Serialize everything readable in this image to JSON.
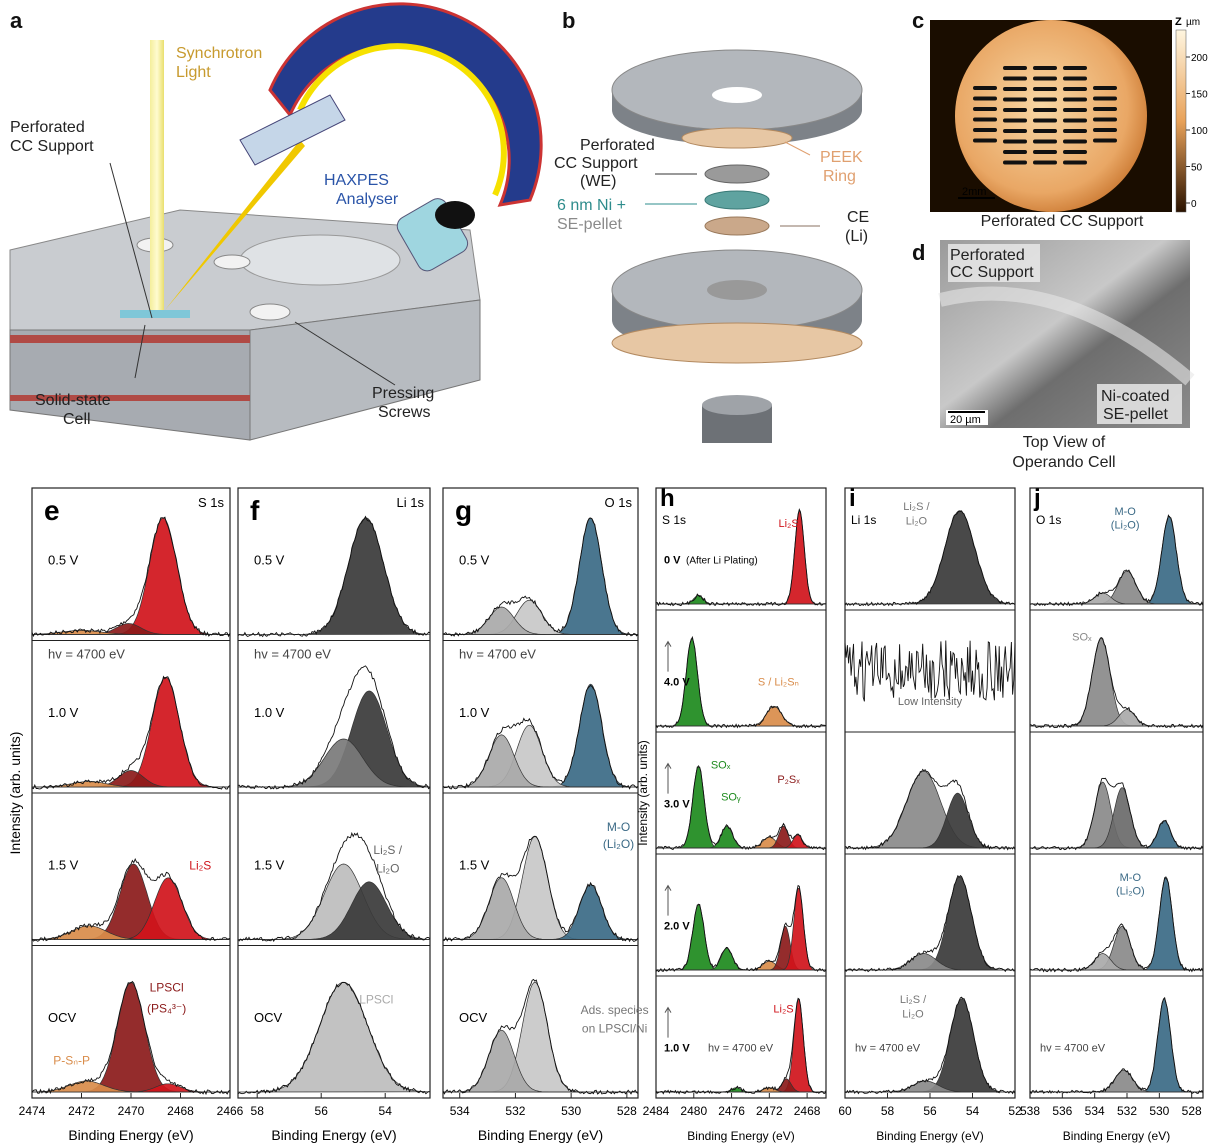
{
  "panels_top": {
    "a": {
      "label": "a",
      "texts": [
        [
          "Synchrotron",
          "Light"
        ],
        [
          "Perforated",
          "CC Support"
        ],
        [
          "HAXPES",
          "Analyser"
        ],
        [
          "Solid-state",
          "Cell"
        ],
        [
          "Pressing",
          "Screws"
        ]
      ]
    },
    "b": {
      "label": "b",
      "texts": [
        [
          "Perforated",
          "CC Support",
          "(WE)"
        ],
        [
          "PEEK",
          "Ring"
        ],
        [
          "6 nm Ni +",
          "SE-pellet"
        ],
        [
          "CE",
          "(Li)"
        ]
      ]
    },
    "c": {
      "label": "c",
      "axis": "Z",
      "unit": "µm",
      "colorbar_ticks": [
        200,
        150,
        100,
        50,
        0
      ],
      "scale_bar": "2mm",
      "caption": "Perforated CC Support"
    },
    "d": {
      "label": "d",
      "texts": [
        [
          "Perforated",
          "CC Support"
        ],
        [
          "Ni-coated",
          "SE-pellet"
        ]
      ],
      "scale_bar": "20 µm",
      "caption": [
        "Top View of",
        "Operando Cell"
      ]
    }
  },
  "ylabel": "Intensity (arb. units)",
  "spectra": [
    {
      "label": "e",
      "core": "S 1s",
      "xlabel": "Binding Energy (eV)",
      "xlim": [
        2474,
        2466
      ],
      "xticks": [
        2474,
        2472,
        2470,
        2468,
        2466
      ],
      "rows": [
        {
          "label": "0.5 V",
          "notes": [],
          "peaks": [
            {
              "center": 2468.7,
              "amplitude": 0.85,
              "width": 0.55,
              "color": "#d0141b"
            },
            {
              "center": 2470.1,
              "amplitude": 0.08,
              "width": 0.5,
              "color": "#8b1a1a"
            },
            {
              "center": 2472,
              "amplitude": 0.03,
              "width": 0.8,
              "color": "#d98c4a"
            }
          ]
        },
        {
          "label": "1.0 V",
          "hv": "hv = 4700 eV",
          "notes": [],
          "peaks": [
            {
              "center": 2468.6,
              "amplitude": 0.8,
              "width": 0.55,
              "color": "#d0141b"
            },
            {
              "center": 2470,
              "amplitude": 0.12,
              "width": 0.5,
              "color": "#8b1a1a"
            },
            {
              "center": 2471.7,
              "amplitude": 0.04,
              "width": 0.7,
              "color": "#d98c4a"
            }
          ]
        },
        {
          "label": "1.5 V",
          "notes": [
            {
              "text": "Li₂S",
              "color": "#d0141b"
            }
          ],
          "peaks": [
            {
              "center": 2469.9,
              "amplitude": 0.55,
              "width": 0.55,
              "color": "#8b1a1a"
            },
            {
              "center": 2468.5,
              "amplitude": 0.45,
              "width": 0.55,
              "color": "#d0141b"
            },
            {
              "center": 2471.7,
              "amplitude": 0.1,
              "width": 0.7,
              "color": "#d98c4a"
            }
          ]
        },
        {
          "label": "OCV",
          "notes": [
            {
              "text": "LPSCl",
              "color": "#8b1a1a"
            },
            {
              "text": "(PS₄³⁻)",
              "color": "#8b1a1a"
            },
            {
              "text": "P-Sₙ-P",
              "color": "#d98c4a"
            }
          ],
          "peaks": [
            {
              "center": 2470,
              "amplitude": 0.8,
              "width": 0.55,
              "color": "#8b1a1a"
            },
            {
              "center": 2468.5,
              "amplitude": 0.06,
              "width": 0.5,
              "color": "#d0141b"
            },
            {
              "center": 2471.8,
              "amplitude": 0.08,
              "width": 0.7,
              "color": "#d98c4a"
            }
          ]
        }
      ]
    },
    {
      "label": "f",
      "core": "Li 1s",
      "xlabel": "Binding Energy (eV)",
      "xlim": [
        58.6,
        52.6
      ],
      "xticks": [
        58,
        56,
        54
      ],
      "rows": [
        {
          "label": "0.5 V",
          "notes": [],
          "peaks": [
            {
              "center": 54.6,
              "amplitude": 0.85,
              "width": 0.55,
              "color": "#3a3a3a"
            }
          ]
        },
        {
          "label": "1.0 V",
          "hv": "hv = 4700 eV",
          "notes": [],
          "peaks": [
            {
              "center": 54.5,
              "amplitude": 0.7,
              "width": 0.55,
              "color": "#3a3a3a"
            },
            {
              "center": 55.3,
              "amplitude": 0.35,
              "width": 0.6,
              "color": "#7a7a7a"
            }
          ]
        },
        {
          "label": "1.5 V",
          "notes": [
            {
              "text": "Li₂S /",
              "color": "#666666"
            },
            {
              "text": "Li₂O",
              "color": "#666666"
            }
          ],
          "peaks": [
            {
              "center": 55.3,
              "amplitude": 0.55,
              "width": 0.6,
              "color": "#bdbdbd"
            },
            {
              "center": 54.5,
              "amplitude": 0.42,
              "width": 0.55,
              "color": "#3a3a3a"
            }
          ]
        },
        {
          "label": "OCV",
          "notes": [
            {
              "text": "LPSCl",
              "color": "#aaaaaa"
            }
          ],
          "peaks": [
            {
              "center": 55.3,
              "amplitude": 0.8,
              "width": 0.75,
              "color": "#bdbdbd"
            }
          ]
        }
      ]
    },
    {
      "label": "g",
      "core": "O 1s",
      "xlabel": "Binding Energy (eV)",
      "xlim": [
        534.6,
        527.6
      ],
      "xticks": [
        534,
        532,
        530,
        528
      ],
      "rows": [
        {
          "label": "0.5 V",
          "notes": [],
          "peaks": [
            {
              "center": 529.3,
              "amplitude": 0.85,
              "width": 0.4,
              "color": "#3b6a86"
            },
            {
              "center": 531.5,
              "amplitude": 0.25,
              "width": 0.45,
              "color": "#c8c8c8"
            },
            {
              "center": 532.5,
              "amplitude": 0.2,
              "width": 0.45,
              "color": "#a9a9a9"
            }
          ]
        },
        {
          "label": "1.0 V",
          "hv": "hv = 4700 eV",
          "notes": [],
          "peaks": [
            {
              "center": 529.3,
              "amplitude": 0.75,
              "width": 0.4,
              "color": "#3b6a86"
            },
            {
              "center": 531.5,
              "amplitude": 0.45,
              "width": 0.45,
              "color": "#c8c8c8"
            },
            {
              "center": 532.5,
              "amplitude": 0.38,
              "width": 0.45,
              "color": "#a9a9a9"
            }
          ]
        },
        {
          "label": "1.5 V",
          "notes": [
            {
              "text": "M-O",
              "color": "#3b6a86"
            },
            {
              "text": "(Li₂O)",
              "color": "#3b6a86"
            }
          ],
          "peaks": [
            {
              "center": 531.3,
              "amplitude": 0.75,
              "width": 0.45,
              "color": "#c8c8c8"
            },
            {
              "center": 532.5,
              "amplitude": 0.45,
              "width": 0.45,
              "color": "#a9a9a9"
            },
            {
              "center": 529.3,
              "amplitude": 0.4,
              "width": 0.4,
              "color": "#3b6a86"
            }
          ]
        },
        {
          "label": "OCV",
          "notes": [
            {
              "text": "Ads. species",
              "color": "#777777"
            },
            {
              "text": "on LPSCl/Ni",
              "color": "#777777"
            }
          ],
          "peaks": [
            {
              "center": 531.3,
              "amplitude": 0.8,
              "width": 0.45,
              "color": "#c8c8c8"
            },
            {
              "center": 532.5,
              "amplitude": 0.45,
              "width": 0.45,
              "color": "#a9a9a9"
            }
          ]
        }
      ]
    },
    {
      "label": "h",
      "core": "S 1s",
      "xlabel": "Binding Energy (eV)",
      "xlim": [
        2484,
        2466
      ],
      "xticks": [
        2484,
        2480,
        2476,
        2472,
        2468
      ],
      "rows": [
        {
          "label": "0 V",
          "sub": "(After Li Plating)",
          "notes": [
            {
              "text": "Li₂S",
              "color": "#d0141b"
            }
          ],
          "peaks": [
            {
              "center": 2468.8,
              "amplitude": 0.85,
              "width": 0.5,
              "color": "#d0141b"
            },
            {
              "center": 2479.5,
              "amplitude": 0.08,
              "width": 0.5,
              "color": "#1d8a1d"
            }
          ]
        },
        {
          "label": "4.0 V",
          "notes": [
            {
              "text": "S / Li₂Sₙ",
              "color": "#d98c4a"
            }
          ],
          "peaks": [
            {
              "center": 2480.2,
              "amplitude": 0.8,
              "width": 0.6,
              "color": "#1d8a1d"
            },
            {
              "center": 2471.5,
              "amplitude": 0.18,
              "width": 0.8,
              "color": "#d98c4a"
            }
          ]
        },
        {
          "label": "3.0 V",
          "notes": [
            {
              "text": "SOₓ",
              "color": "#1d8a1d"
            },
            {
              "text": "SOᵧ",
              "color": "#1d8a1d"
            },
            {
              "text": "P₂Sₓ",
              "color": "#8b1a1a"
            }
          ],
          "peaks": [
            {
              "center": 2479.5,
              "amplitude": 0.75,
              "width": 0.6,
              "color": "#1d8a1d"
            },
            {
              "center": 2476.5,
              "amplitude": 0.2,
              "width": 0.6,
              "color": "#1d8a1d"
            },
            {
              "center": 2472,
              "amplitude": 0.1,
              "width": 0.7,
              "color": "#d98c4a"
            },
            {
              "center": 2470.5,
              "amplitude": 0.2,
              "width": 0.5,
              "color": "#8b1a1a"
            },
            {
              "center": 2469,
              "amplitude": 0.12,
              "width": 0.5,
              "color": "#d0141b"
            }
          ]
        },
        {
          "label": "2.0 V",
          "notes": [],
          "peaks": [
            {
              "center": 2479.5,
              "amplitude": 0.6,
              "width": 0.6,
              "color": "#1d8a1d"
            },
            {
              "center": 2476.5,
              "amplitude": 0.2,
              "width": 0.6,
              "color": "#1d8a1d"
            },
            {
              "center": 2472,
              "amplitude": 0.08,
              "width": 0.7,
              "color": "#d98c4a"
            },
            {
              "center": 2470.3,
              "amplitude": 0.4,
              "width": 0.5,
              "color": "#8b1a1a"
            },
            {
              "center": 2468.9,
              "amplitude": 0.75,
              "width": 0.5,
              "color": "#d0141b"
            }
          ]
        },
        {
          "label": "1.0 V",
          "hv": "hv = 4700 eV",
          "notes": [
            {
              "text": "Li₂S",
              "color": "#d0141b"
            }
          ],
          "peaks": [
            {
              "center": 2468.9,
              "amplitude": 0.85,
              "width": 0.5,
              "color": "#d0141b"
            },
            {
              "center": 2470.2,
              "amplitude": 0.12,
              "width": 0.5,
              "color": "#8b1a1a"
            },
            {
              "center": 2475.5,
              "amplitude": 0.04,
              "width": 0.5,
              "color": "#1d8a1d"
            },
            {
              "center": 2472,
              "amplitude": 0.04,
              "width": 0.6,
              "color": "#d98c4a"
            }
          ]
        }
      ]
    },
    {
      "label": "i",
      "core": "Li 1s",
      "xlabel": "Binding Energy (eV)",
      "xlim": [
        60,
        52
      ],
      "xticks": [
        60,
        58,
        56,
        54,
        52
      ],
      "rows": [
        {
          "label": null,
          "notes": [
            {
              "text": "Li₂S /",
              "color": "#777777"
            },
            {
              "text": "Li₂O",
              "color": "#777777"
            }
          ],
          "peaks": [
            {
              "center": 54.6,
              "amplitude": 0.85,
              "width": 0.7,
              "color": "#3a3a3a"
            }
          ]
        },
        {
          "label": null,
          "notes": [
            {
              "text": "Low Intensity",
              "color": "#666666"
            }
          ],
          "peaks": []
        },
        {
          "label": null,
          "notes": [],
          "peaks": [
            {
              "center": 56.3,
              "amplitude": 0.7,
              "width": 0.8,
              "color": "#8a8a8a"
            },
            {
              "center": 54.7,
              "amplitude": 0.5,
              "width": 0.5,
              "color": "#3a3a3a"
            }
          ]
        },
        {
          "label": null,
          "notes": [],
          "peaks": [
            {
              "center": 54.6,
              "amplitude": 0.85,
              "width": 0.55,
              "color": "#3a3a3a"
            },
            {
              "center": 56.3,
              "amplitude": 0.15,
              "width": 0.6,
              "color": "#8a8a8a"
            }
          ]
        },
        {
          "label": null,
          "hv": "hv = 4700 eV",
          "notes": [
            {
              "text": "Li₂S /",
              "color": "#777777"
            },
            {
              "text": "Li₂O",
              "color": "#777777"
            }
          ],
          "peaks": [
            {
              "center": 54.5,
              "amplitude": 0.85,
              "width": 0.55,
              "color": "#3a3a3a"
            },
            {
              "center": 56.2,
              "amplitude": 0.1,
              "width": 0.6,
              "color": "#8a8a8a"
            }
          ]
        }
      ]
    },
    {
      "label": "j",
      "core": "O 1s",
      "xlabel": "Binding Energy (eV)",
      "xlim": [
        538,
        527.3
      ],
      "xticks": [
        538,
        536,
        534,
        532,
        530,
        528
      ],
      "rows": [
        {
          "label": null,
          "notes": [
            {
              "text": "M-O",
              "color": "#3b6a86"
            },
            {
              "text": "(Li₂O)",
              "color": "#3b6a86"
            }
          ],
          "peaks": [
            {
              "center": 529.4,
              "amplitude": 0.8,
              "width": 0.45,
              "color": "#3b6a86"
            },
            {
              "center": 532,
              "amplitude": 0.3,
              "width": 0.55,
              "color": "#8a8a8a"
            },
            {
              "center": 533.5,
              "amplitude": 0.1,
              "width": 0.5,
              "color": "#a9a9a9"
            }
          ]
        },
        {
          "label": null,
          "notes": [
            {
              "text": "SOₓ",
              "color": "#888888"
            }
          ],
          "peaks": [
            {
              "center": 533.6,
              "amplitude": 0.8,
              "width": 0.55,
              "color": "#8a8a8a"
            },
            {
              "center": 532,
              "amplitude": 0.15,
              "width": 0.5,
              "color": "#a9a9a9"
            }
          ]
        },
        {
          "label": null,
          "notes": [],
          "peaks": [
            {
              "center": 533.5,
              "amplitude": 0.6,
              "width": 0.5,
              "color": "#8a8a8a"
            },
            {
              "center": 532.3,
              "amplitude": 0.55,
              "width": 0.5,
              "color": "#6a6a6a"
            },
            {
              "center": 529.7,
              "amplitude": 0.25,
              "width": 0.4,
              "color": "#3b6a86"
            }
          ]
        },
        {
          "label": null,
          "notes": [
            {
              "text": "M-O",
              "color": "#3b6a86"
            },
            {
              "text": "(Li₂O)",
              "color": "#3b6a86"
            }
          ],
          "peaks": [
            {
              "center": 529.6,
              "amplitude": 0.85,
              "width": 0.4,
              "color": "#3b6a86"
            },
            {
              "center": 532.3,
              "amplitude": 0.4,
              "width": 0.5,
              "color": "#8a8a8a"
            },
            {
              "center": 533.5,
              "amplitude": 0.15,
              "width": 0.5,
              "color": "#a9a9a9"
            }
          ]
        },
        {
          "label": null,
          "hv": "hv = 4700 eV",
          "notes": [],
          "peaks": [
            {
              "center": 529.7,
              "amplitude": 0.85,
              "width": 0.4,
              "color": "#3b6a86"
            },
            {
              "center": 532.2,
              "amplitude": 0.2,
              "width": 0.55,
              "color": "#8a8a8a"
            }
          ]
        }
      ]
    }
  ]
}
